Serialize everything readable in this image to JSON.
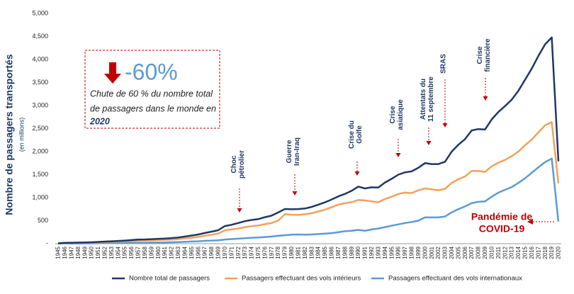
{
  "chart_data": {
    "type": "line",
    "y_label": "Nombre de passagers transportés",
    "y_sublabel": "(en millions)",
    "categories": [
      "1945",
      "1946",
      "1947",
      "1948",
      "1949",
      "1950",
      "1951",
      "1952",
      "1953",
      "1954",
      "1955",
      "1956",
      "1957",
      "1958",
      "1959",
      "1960",
      "1961",
      "1962",
      "1963",
      "1964",
      "1965",
      "1966",
      "1967",
      "1968",
      "1969",
      "1970",
      "1971",
      "1972",
      "1973",
      "1974",
      "1975",
      "1976",
      "1977",
      "1978",
      "1979",
      "1980",
      "1981",
      "1982",
      "1983",
      "1984",
      "1985",
      "1986",
      "1987",
      "1988",
      "1989",
      "1990",
      "1991",
      "1992",
      "1993",
      "1994",
      "1995",
      "1996",
      "1997",
      "1998",
      "1999",
      "2000",
      "2001",
      "2002",
      "2003",
      "2004",
      "2005",
      "2006",
      "2007",
      "2008",
      "2009",
      "2010",
      "2011",
      "2012",
      "2013",
      "2014",
      "2015",
      "2016",
      "2017",
      "2018",
      "2019",
      "2020"
    ],
    "series": [
      {
        "name": "Nombre total de passagers",
        "color": "#1f3864",
        "values": [
          9,
          18,
          21,
          24,
          27,
          31,
          39,
          46,
          52,
          60,
          68,
          79,
          90,
          92,
          99,
          106,
          111,
          121,
          135,
          155,
          177,
          200,
          233,
          262,
          293,
          383,
          411,
          450,
          489,
          515,
          534,
          576,
          610,
          679,
          754,
          748,
          752,
          765,
          798,
          848,
          899,
          960,
          1028,
          1082,
          1150,
          1240,
          1200,
          1225,
          1220,
          1330,
          1410,
          1500,
          1550,
          1570,
          1650,
          1750,
          1730,
          1730,
          1780,
          2000,
          2150,
          2270,
          2460,
          2490,
          2480,
          2700,
          2860,
          2990,
          3130,
          3320,
          3560,
          3800,
          4080,
          4330,
          4480,
          1790
        ]
      },
      {
        "name": "Passagers effectuant des vols intérieurs",
        "color": "#f4a15a",
        "values": [
          7,
          14,
          17,
          19,
          21,
          24,
          30,
          35,
          40,
          46,
          52,
          60,
          68,
          70,
          75,
          80,
          84,
          90,
          100,
          115,
          130,
          148,
          172,
          195,
          220,
          290,
          310,
          330,
          360,
          380,
          395,
          425,
          450,
          500,
          640,
          630,
          625,
          640,
          660,
          700,
          740,
          790,
          850,
          880,
          900,
          950,
          940,
          920,
          900,
          970,
          1020,
          1080,
          1110,
          1100,
          1160,
          1200,
          1180,
          1160,
          1190,
          1320,
          1400,
          1460,
          1580,
          1580,
          1560,
          1680,
          1760,
          1820,
          1900,
          2000,
          2140,
          2260,
          2420,
          2570,
          2640,
          1310
        ]
      },
      {
        "name": "Passagers effectuant des vols internationaux",
        "color": "#5b9bd5",
        "values": [
          2,
          3,
          4,
          5,
          6,
          7,
          9,
          11,
          12,
          14,
          16,
          19,
          22,
          22,
          24,
          26,
          27,
          31,
          35,
          40,
          47,
          52,
          61,
          67,
          73,
          90,
          100,
          110,
          120,
          130,
          135,
          145,
          155,
          170,
          185,
          195,
          200,
          195,
          200,
          210,
          220,
          230,
          250,
          270,
          280,
          300,
          280,
          310,
          330,
          360,
          390,
          420,
          450,
          470,
          500,
          570,
          570,
          570,
          590,
          680,
          750,
          810,
          880,
          910,
          920,
          1020,
          1110,
          1170,
          1230,
          1320,
          1420,
          1540,
          1660,
          1770,
          1850,
          480
        ]
      }
    ],
    "ylim": [
      0,
      5000
    ],
    "yticks": [
      {
        "value": 0,
        "label": "-"
      },
      500,
      {
        "value": 1000,
        "label": "1,000"
      },
      {
        "value": 1500,
        "label": "1,500"
      },
      {
        "value": 2000,
        "label": "2,000"
      },
      {
        "value": 2500,
        "label": "2,500"
      },
      {
        "value": 3000,
        "label": "3,000"
      },
      {
        "value": 3500,
        "label": "3,500"
      },
      {
        "value": 4000,
        "label": "4,000"
      },
      {
        "value": 4500,
        "label": "4,500"
      },
      {
        "value": 5000,
        "label": "5,000"
      }
    ],
    "grid": false,
    "legend": "bottom",
    "annotations": [
      {
        "lines": [
          "Choc",
          "pétrolier"
        ]
      },
      {
        "lines": [
          "Guerre",
          "Iran-Iraq"
        ]
      },
      {
        "lines": [
          "Crise du",
          "Golfe"
        ]
      },
      {
        "lines": [
          "Crise",
          "asiatique"
        ]
      },
      {
        "lines": [
          "Attentats du",
          "11 septembre"
        ]
      },
      {
        "lines": [
          "SRAS"
        ]
      },
      {
        "lines": [
          "Crise",
          "financière"
        ]
      }
    ],
    "callout": {
      "headline": "-60%",
      "lines": [
        "Chute de 60 % du nombre total",
        "de passagers dans le monde en"
      ],
      "year": "2020"
    },
    "pandemic": {
      "lines": [
        "Pandémie de",
        "COVID-19"
      ]
    }
  }
}
